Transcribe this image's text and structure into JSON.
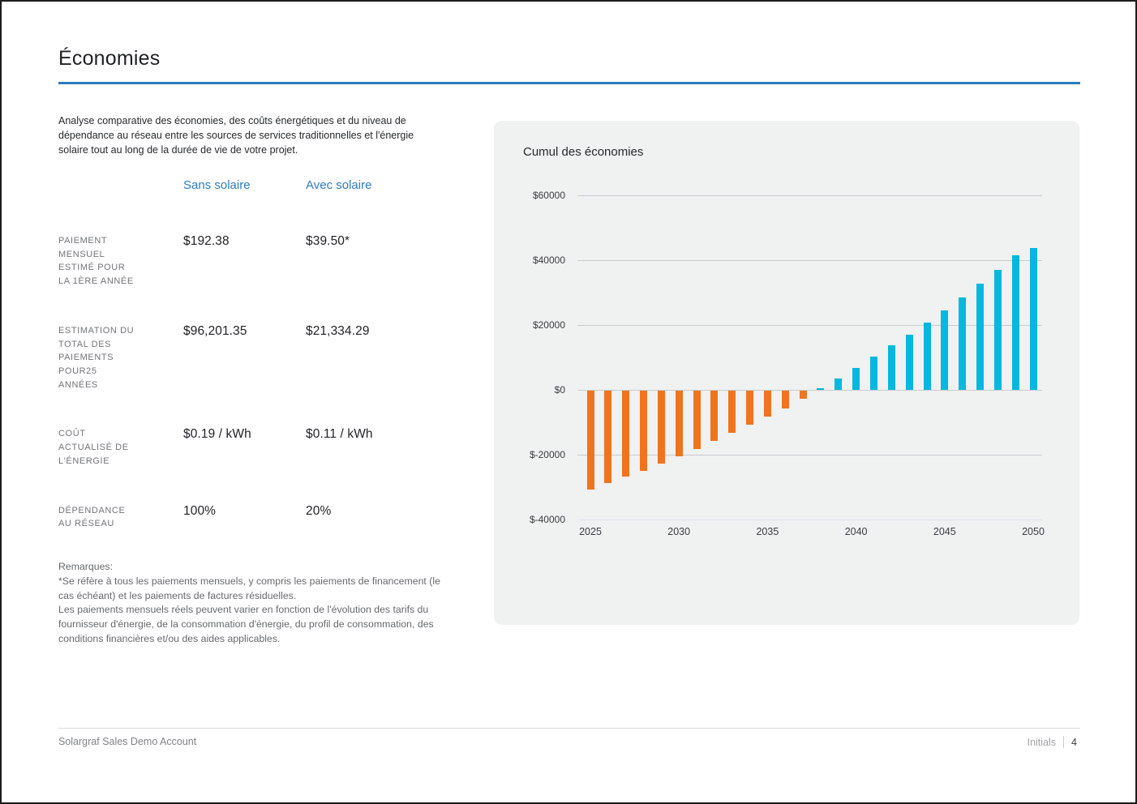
{
  "page": {
    "title": "Économies",
    "intro": "Analyse comparative des économies, des coûts énergétiques et du niveau de dépendance au réseau entre les sources de services traditionnelles et l'énergie solaire tout au long de la durée de vie de votre projet.",
    "accent_color": "#2E7CC1"
  },
  "comparison_table": {
    "columns": [
      "Sans solaire",
      "Avec solaire"
    ],
    "rows": [
      {
        "label": "PAIEMENT MENSUEL ESTIMÉ POUR LA 1ÈRE ANNÉE",
        "sans": "$192.38",
        "avec": "$39.50*"
      },
      {
        "label": "ESTIMATION DU TOTAL DES PAIEMENTS POUR25 ANNÉES",
        "sans": "$96,201.35",
        "avec": "$21,334.29"
      },
      {
        "label": "COÛT ACTUALISÉ DE L'ÉNERGIE",
        "sans": "$0.19 / kWh",
        "avec": "$0.11 / kWh"
      },
      {
        "label": "DÉPENDANCE AU RÉSEAU",
        "sans": "100%",
        "avec": "20%"
      }
    ]
  },
  "remarks": {
    "title": "Remarques:",
    "note1": "*Se réfère à tous les paiements mensuels, y compris les paiements de financement (le cas échéant) et les paiements de factures résiduelles.",
    "note2": "Les paiements mensuels réels peuvent varier en fonction de l'évolution des tarifs du fournisseur d'énergie, de la consommation d'énergie, du profil de consommation, des conditions financières et/ou des aides applicables."
  },
  "chart_data": {
    "type": "bar",
    "title": "Cumul des économies",
    "x": [
      2025,
      2026,
      2027,
      2028,
      2029,
      2030,
      2031,
      2032,
      2033,
      2034,
      2035,
      2036,
      2037,
      2038,
      2039,
      2040,
      2041,
      2042,
      2043,
      2044,
      2045,
      2046,
      2047,
      2048,
      2049,
      2050
    ],
    "values": [
      -30500,
      -28600,
      -26600,
      -24700,
      -22600,
      -20300,
      -18000,
      -15500,
      -13000,
      -10600,
      -8100,
      -5400,
      -2400,
      500,
      3600,
      6800,
      10200,
      13700,
      16900,
      20800,
      24400,
      28400,
      32800,
      37000,
      41400,
      43800
    ],
    "ylim": [
      -40000,
      60000
    ],
    "yticks": [
      {
        "v": 60000,
        "label": "$60000"
      },
      {
        "v": 40000,
        "label": "$40000"
      },
      {
        "v": 20000,
        "label": "$20000"
      },
      {
        "v": 0,
        "label": "$0"
      },
      {
        "v": -20000,
        "label": "$-20000"
      },
      {
        "v": -40000,
        "label": "$-40000"
      }
    ],
    "xticks": [
      {
        "v": 2025,
        "label": "2025"
      },
      {
        "v": 2030,
        "label": "2030"
      },
      {
        "v": 2035,
        "label": "2035"
      },
      {
        "v": 2040,
        "label": "2040"
      },
      {
        "v": 2045,
        "label": "2045"
      },
      {
        "v": 2050,
        "label": "2050"
      }
    ],
    "colors": {
      "positive": "#06b7df",
      "negative": "#ef7420"
    },
    "grid": true,
    "legend": false,
    "xlabel": "",
    "ylabel": ""
  },
  "footer": {
    "account": "Solargraf Sales Demo Account",
    "initials_label": "Initials",
    "page_number": "4"
  }
}
